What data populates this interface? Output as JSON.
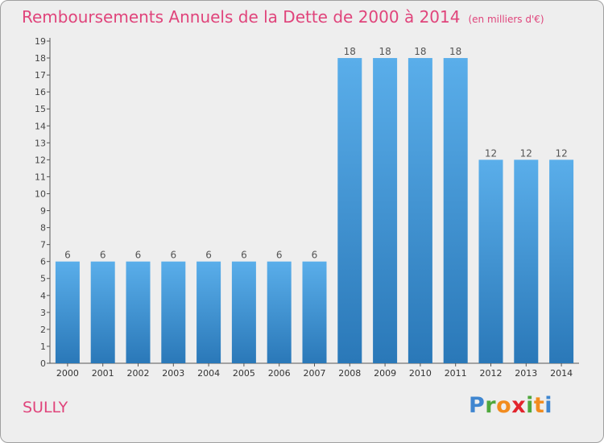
{
  "header": {
    "title": "Remboursements Annuels de la Dette de 2000 à 2014",
    "subtitle": "(en milliers d'€)"
  },
  "footer": {
    "commune": "SULLY",
    "logo_letters": [
      {
        "ch": "P",
        "color": "#3f86d0"
      },
      {
        "ch": "r",
        "color": "#4fa83d"
      },
      {
        "ch": "o",
        "color": "#f28c1e"
      },
      {
        "ch": "x",
        "color": "#e2242d"
      },
      {
        "ch": "i",
        "color": "#4fa83d"
      },
      {
        "ch": "t",
        "color": "#f28c1e"
      },
      {
        "ch": "i",
        "color": "#3f86d0"
      }
    ]
  },
  "colors": {
    "bar_top": "#5aaeea",
    "bar_bottom": "#2a78b8",
    "accent": "#e0447b"
  },
  "chart_data": {
    "type": "bar",
    "title": "Remboursements Annuels de la Dette de 2000 à 2014",
    "subtitle": "(en milliers d'€)",
    "categories": [
      "2000",
      "2001",
      "2002",
      "2003",
      "2004",
      "2005",
      "2006",
      "2007",
      "2008",
      "2009",
      "2010",
      "2011",
      "2012",
      "2013",
      "2014"
    ],
    "values": [
      6,
      6,
      6,
      6,
      6,
      6,
      6,
      6,
      18,
      18,
      18,
      18,
      12,
      12,
      12
    ],
    "ylim": [
      0,
      19
    ],
    "yticks": [
      0,
      1,
      2,
      3,
      4,
      5,
      6,
      7,
      8,
      9,
      10,
      11,
      12,
      13,
      14,
      15,
      16,
      17,
      18,
      19
    ],
    "grid": false,
    "xlabel": "",
    "ylabel": ""
  }
}
